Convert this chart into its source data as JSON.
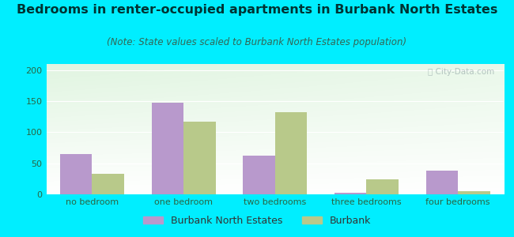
{
  "categories": [
    "no bedroom",
    "one bedroom",
    "two bedrooms",
    "three bedrooms",
    "four bedrooms"
  ],
  "burbank_north_estates": [
    65,
    148,
    63,
    3,
    38
  ],
  "burbank": [
    33,
    117,
    133,
    24,
    5
  ],
  "color_bne": "#b899cc",
  "color_burbank": "#b8c98a",
  "title": "Bedrooms in renter-occupied apartments in Burbank North Estates",
  "subtitle": "(Note: State values scaled to Burbank North Estates population)",
  "legend_bne": "Burbank North Estates",
  "legend_burbank": "Burbank",
  "ylim": [
    0,
    210
  ],
  "yticks": [
    0,
    50,
    100,
    150,
    200
  ],
  "background_outer": "#00eeff",
  "bar_width": 0.35,
  "title_fontsize": 11.5,
  "subtitle_fontsize": 8.5,
  "tick_fontsize": 8,
  "legend_fontsize": 9
}
